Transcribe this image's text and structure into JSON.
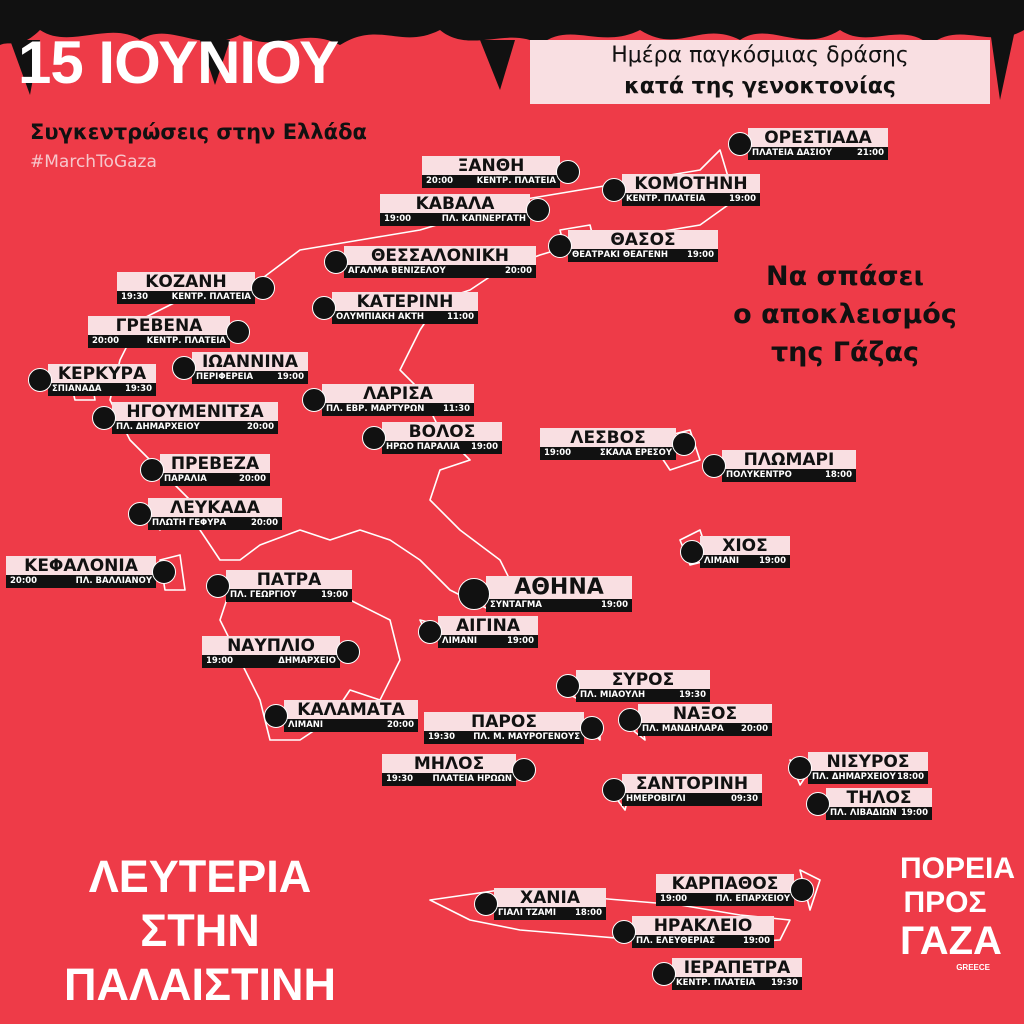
{
  "header": {
    "title": "15 ΙΟΥΝΙΟΥ",
    "subtitle": "Συγκεντρώσεις στην Ελλάδα",
    "hashtag": "#MarchToGaza"
  },
  "banner": {
    "line1": "Ημέρα παγκόσμιας δράσης",
    "line2": "κατά της γενοκτονίας"
  },
  "side_slogan": [
    "Να σπάσει",
    "ο αποκλεισμός",
    "της Γάζας"
  ],
  "footer_slogan": [
    "ΛΕΥΤΕΡΙΑ",
    "ΣΤΗΝ",
    "ΠΑΛΑΙΣΤΙΝΗ"
  ],
  "logo": [
    "ΠΟΡΕΙΑ",
    "ΠΡΟΣ",
    "ΓΑΖΑ",
    "GREECE"
  ],
  "locations": [
    {
      "name": "ΟΡΕΣΤΙΑΔΑ",
      "place": "ΠΛΑΤΕΙΑ ΔΑΣΙΟΥ",
      "time": "21:00"
    },
    {
      "name": "ΞΑΝΘΗ",
      "place": "ΚΕΝΤΡ. ΠΛΑΤΕΙΑ",
      "time": "20:00"
    },
    {
      "name": "ΚΟΜΟΤΗΝΗ",
      "place": "ΚΕΝΤΡ. ΠΛΑΤΕΙΑ",
      "time": "19:00"
    },
    {
      "name": "ΚΑΒΑΛΑ",
      "place": "ΠΛ. ΚΑΠΝΕΡΓΑΤΗ",
      "time": "19:00"
    },
    {
      "name": "ΘΑΣΟΣ",
      "place": "ΘΕΑΤΡΑΚΙ ΘΕΑΓΕΝΗ",
      "time": "19:00"
    },
    {
      "name": "ΘΕΣΣΑΛΟΝΙΚΗ",
      "place": "ΑΓΑΛΜΑ ΒΕΝΙΖΕΛΟΥ",
      "time": "20:00"
    },
    {
      "name": "ΚΟΖΑΝΗ",
      "place": "ΚΕΝΤΡ. ΠΛΑΤΕΙΑ",
      "time": "19:30"
    },
    {
      "name": "ΚΑΤΕΡΙΝΗ",
      "place": "ΟΛΥΜΠΙΑΚΗ ΑΚΤΗ",
      "time": "11:00"
    },
    {
      "name": "ΓΡΕΒΕΝΑ",
      "place": "ΚΕΝΤΡ. ΠΛΑΤΕΙΑ",
      "time": "20:00"
    },
    {
      "name": "ΙΩΑΝΝΙΝΑ",
      "place": "ΠΕΡΙΦΕΡΕΙΑ",
      "time": "19:00"
    },
    {
      "name": "ΚΕΡΚΥΡΑ",
      "place": "ΣΠΙΑΝΑΔΑ",
      "time": "19:30"
    },
    {
      "name": "ΛΑΡΙΣΑ",
      "place": "ΠΛ. ΕΒΡ. ΜΑΡΤΥΡΩΝ",
      "time": "11:30"
    },
    {
      "name": "ΗΓΟΥΜΕΝΙΤΣΑ",
      "place": "ΠΛ. ΔΗΜΑΡΧΕΙΟΥ",
      "time": "20:00"
    },
    {
      "name": "ΒΟΛΟΣ",
      "place": "ΗΡΩΟ ΠΑΡΑΛΙΑ",
      "time": "19:00"
    },
    {
      "name": "ΛΕΣΒΟΣ",
      "place": "ΣΚΑΛΑ ΕΡΕΣΟΥ",
      "time": "19:00"
    },
    {
      "name": "ΠΛΩΜΑΡΙ",
      "place": "ΠΟΛΥΚΕΝΤΡΟ",
      "time": "18:00"
    },
    {
      "name": "ΠΡΕΒΕΖΑ",
      "place": "ΠΑΡΑΛΙΑ",
      "time": "20:00"
    },
    {
      "name": "ΛΕΥΚΑΔΑ",
      "place": "ΠΛΩΤΗ ΓΕΦΥΡΑ",
      "time": "20:00"
    },
    {
      "name": "ΧΙΟΣ",
      "place": "ΛΙΜΑΝΙ",
      "time": "19:00"
    },
    {
      "name": "ΚΕΦΑΛΟΝΙΑ",
      "place": "ΠΛ. ΒΑΛΛΙΑΝΟΥ",
      "time": "20:00"
    },
    {
      "name": "ΠΑΤΡΑ",
      "place": "ΠΛ. ΓΕΩΡΓΙΟΥ",
      "time": "19:00"
    },
    {
      "name": "ΑΘΗΝΑ",
      "place": "ΣΥΝΤΑΓΜΑ",
      "time": "19:00"
    },
    {
      "name": "ΑΙΓΙΝΑ",
      "place": "ΛΙΜΑΝΙ",
      "time": "19:00"
    },
    {
      "name": "ΝΑΥΠΛΙΟ",
      "place": "ΔΗΜΑΡΧΕΙΟ",
      "time": "19:00"
    },
    {
      "name": "ΣΥΡΟΣ",
      "place": "ΠΛ. ΜΙΑΟΥΛΗ",
      "time": "19:30"
    },
    {
      "name": "ΚΑΛΑΜΑΤΑ",
      "place": "ΛΙΜΑΝΙ",
      "time": "20:00"
    },
    {
      "name": "ΠΑΡΟΣ",
      "place": "ΠΛ. Μ. ΜΑΥΡΟΓΕΝΟΥΣ",
      "time": "19:30"
    },
    {
      "name": "ΝΑΞΟΣ",
      "place": "ΠΛ. ΜΑΝΔΗΛΑΡΑ",
      "time": "20:00"
    },
    {
      "name": "ΝΙΣΥΡΟΣ",
      "place": "ΠΛ. ΔΗΜΑΡΧΕΙΟΥ",
      "time": "18:00"
    },
    {
      "name": "ΜΗΛΟΣ",
      "place": "ΠΛΑΤΕΙΑ ΗΡΩΩΝ",
      "time": "19:30"
    },
    {
      "name": "ΣΑΝΤΟΡΙΝΗ",
      "place": "ΗΜΕΡΟΒΙΓΛΙ",
      "time": "09:30"
    },
    {
      "name": "ΤΗΛΟΣ",
      "place": "ΠΛ. ΛΙΒΑΔΙΩΝ",
      "time": "19:00"
    },
    {
      "name": "ΚΑΡΠΑΘΟΣ",
      "place": "ΠΛ. ΕΠΑΡΧΕΙΟΥ",
      "time": "19:00"
    },
    {
      "name": "ΧΑΝΙΑ",
      "place": "ΓΙΑΛΙ ΤΖΑΜΙ",
      "time": "18:00"
    },
    {
      "name": "ΗΡΑΚΛΕΙΟ",
      "place": "ΠΛ. ΕΛΕΥΘΕΡΙΑΣ",
      "time": "19:00"
    },
    {
      "name": "ΙΕΡΑΠΕΤΡΑ",
      "place": "ΚΕΝΤΡ. ΠΛΑΤΕΙΑ",
      "time": "19:30"
    }
  ]
}
